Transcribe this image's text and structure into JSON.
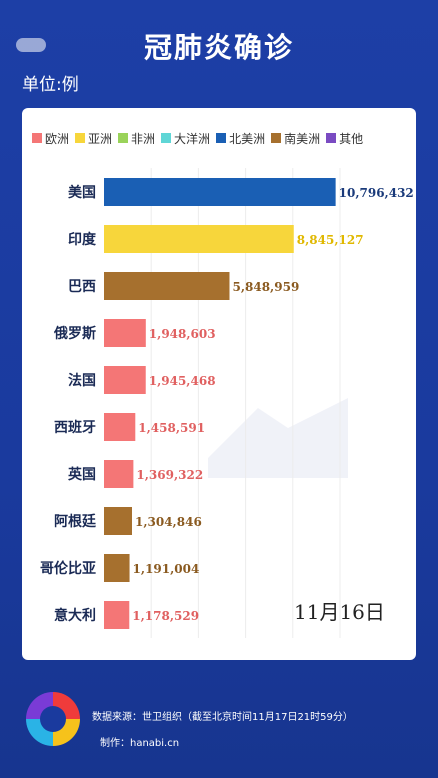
{
  "header": {
    "title": "冠肺炎确诊",
    "unit_label": "单位:例"
  },
  "footer": {
    "source": "数据来源：世卫组织（截至北京时间11月17日21时59分）",
    "credit": "制作：hanabi.cn"
  },
  "chart_data": {
    "type": "bar",
    "orientation": "horizontal",
    "date_label": "11月16日",
    "legend": [
      {
        "name": "欧洲",
        "color": "#f47676"
      },
      {
        "name": "亚洲",
        "color": "#f7d63b"
      },
      {
        "name": "非洲",
        "color": "#9ad35a"
      },
      {
        "name": "大洋洲",
        "color": "#5fd6d6"
      },
      {
        "name": "北美洲",
        "color": "#1a5fb4"
      },
      {
        "name": "南美洲",
        "color": "#a6702e"
      },
      {
        "name": "其他",
        "color": "#7a4bc2"
      }
    ],
    "categories": [
      "美国",
      "印度",
      "巴西",
      "俄罗斯",
      "法国",
      "西班牙",
      "英国",
      "阿根廷",
      "哥伦比亚",
      "意大利"
    ],
    "values": [
      10796432,
      8845127,
      5848959,
      1948603,
      1945468,
      1458591,
      1369322,
      1304846,
      1191004,
      1178529
    ],
    "value_labels": [
      "10,796,432",
      "8,845,127",
      "5,848,959",
      "1,948,603",
      "1,945,468",
      "1,458,591",
      "1,369,322",
      "1,304,846",
      "1,191,004",
      "1,178,529"
    ],
    "regions": [
      "北美洲",
      "亚洲",
      "南美洲",
      "欧洲",
      "欧洲",
      "欧洲",
      "欧洲",
      "南美洲",
      "南美洲",
      "欧洲"
    ],
    "value_label_colors": [
      "#1a3a7a",
      "#e0b800",
      "#8a5a20",
      "#e06060",
      "#e06060",
      "#e06060",
      "#e06060",
      "#8a5a20",
      "#8a5a20",
      "#e06060"
    ],
    "xlim": [
      0,
      11000000
    ],
    "grid": true
  }
}
